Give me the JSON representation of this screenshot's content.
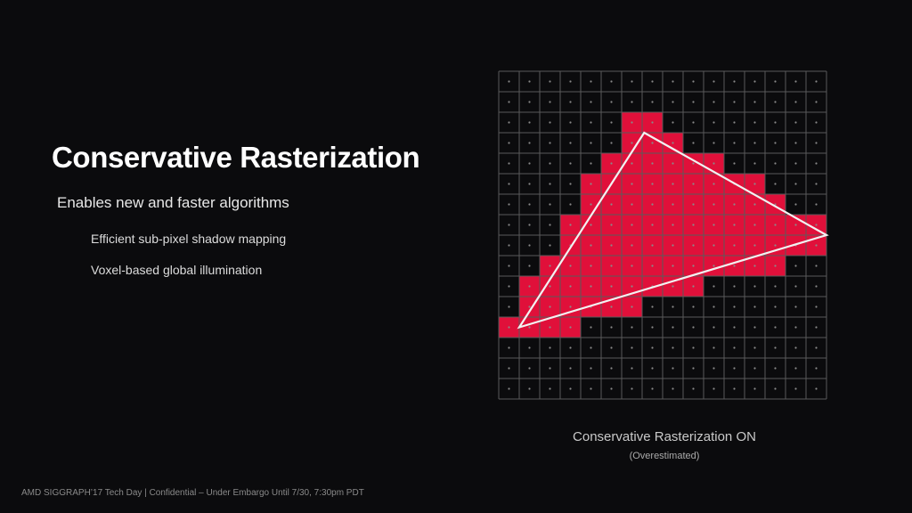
{
  "slide": {
    "title": "Conservative Rasterization",
    "bullet_main": "Enables new and faster algorithms",
    "sub_bullets": [
      "Efficient sub-pixel shadow mapping",
      "Voxel-based global illumination"
    ],
    "caption": "Conservative Rasterization ON",
    "caption_sub": "(Overestimated)",
    "footer": "AMD SIGGRAPH’17 Tech Day | Confidential – Under Embargo Until 7/30, 7:30pm PDT"
  },
  "grid": {
    "columns": 16,
    "rows": 16,
    "fill_color": "#e0103a",
    "line_color": "#5a5a5a",
    "dot_color": "#8a8a8a",
    "outline_color": "#f2f2f2",
    "triangle_vertices": [
      [
        7.1,
        3.0
      ],
      [
        16.0,
        8.0
      ],
      [
        1.0,
        12.5
      ]
    ],
    "covered_cells": [
      [
        2,
        6
      ],
      [
        2,
        7
      ],
      [
        3,
        6
      ],
      [
        3,
        7
      ],
      [
        3,
        8
      ],
      [
        4,
        5
      ],
      [
        4,
        6
      ],
      [
        4,
        7
      ],
      [
        4,
        8
      ],
      [
        4,
        9
      ],
      [
        4,
        10
      ],
      [
        5,
        4
      ],
      [
        5,
        5
      ],
      [
        5,
        6
      ],
      [
        5,
        7
      ],
      [
        5,
        8
      ],
      [
        5,
        9
      ],
      [
        5,
        10
      ],
      [
        5,
        11
      ],
      [
        5,
        12
      ],
      [
        6,
        4
      ],
      [
        6,
        5
      ],
      [
        6,
        6
      ],
      [
        6,
        7
      ],
      [
        6,
        8
      ],
      [
        6,
        9
      ],
      [
        6,
        10
      ],
      [
        6,
        11
      ],
      [
        6,
        12
      ],
      [
        6,
        13
      ],
      [
        7,
        3
      ],
      [
        7,
        4
      ],
      [
        7,
        5
      ],
      [
        7,
        6
      ],
      [
        7,
        7
      ],
      [
        7,
        8
      ],
      [
        7,
        9
      ],
      [
        7,
        10
      ],
      [
        7,
        11
      ],
      [
        7,
        12
      ],
      [
        7,
        13
      ],
      [
        7,
        14
      ],
      [
        7,
        15
      ],
      [
        8,
        3
      ],
      [
        8,
        4
      ],
      [
        8,
        5
      ],
      [
        8,
        6
      ],
      [
        8,
        7
      ],
      [
        8,
        8
      ],
      [
        8,
        9
      ],
      [
        8,
        10
      ],
      [
        8,
        11
      ],
      [
        8,
        12
      ],
      [
        8,
        13
      ],
      [
        8,
        14
      ],
      [
        8,
        15
      ],
      [
        9,
        2
      ],
      [
        9,
        3
      ],
      [
        9,
        4
      ],
      [
        9,
        5
      ],
      [
        9,
        6
      ],
      [
        9,
        7
      ],
      [
        9,
        8
      ],
      [
        9,
        9
      ],
      [
        9,
        10
      ],
      [
        9,
        11
      ],
      [
        9,
        12
      ],
      [
        9,
        13
      ],
      [
        10,
        1
      ],
      [
        10,
        2
      ],
      [
        10,
        3
      ],
      [
        10,
        4
      ],
      [
        10,
        5
      ],
      [
        10,
        6
      ],
      [
        10,
        7
      ],
      [
        10,
        8
      ],
      [
        10,
        9
      ],
      [
        11,
        1
      ],
      [
        11,
        2
      ],
      [
        11,
        3
      ],
      [
        11,
        4
      ],
      [
        11,
        5
      ],
      [
        11,
        6
      ],
      [
        12,
        0
      ],
      [
        12,
        1
      ],
      [
        12,
        2
      ],
      [
        12,
        3
      ]
    ]
  }
}
